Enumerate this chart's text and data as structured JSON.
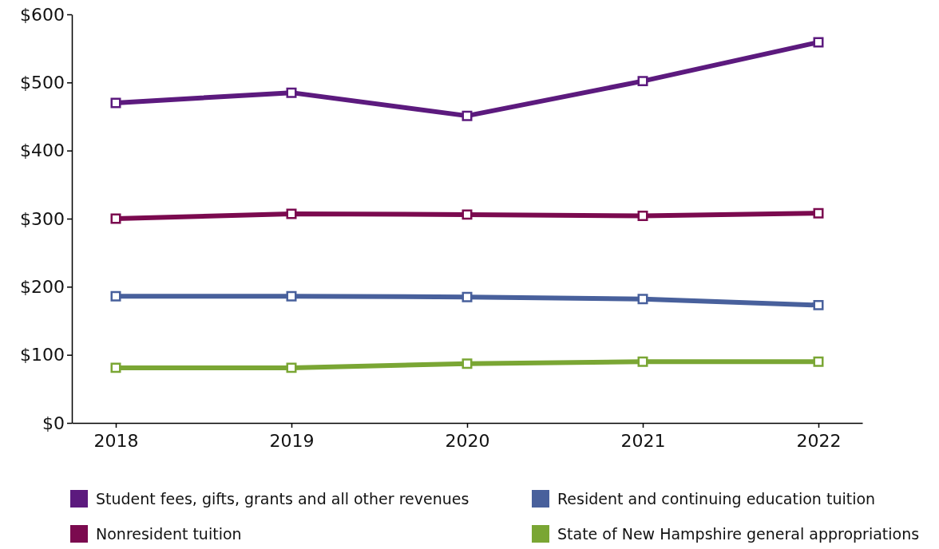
{
  "chart_data": {
    "type": "line",
    "categories": [
      "2018",
      "2019",
      "2020",
      "2021",
      "2022"
    ],
    "ylim": [
      0,
      600
    ],
    "yticks": [
      {
        "value": 0,
        "label": "$0"
      },
      {
        "value": 100,
        "label": "$100"
      },
      {
        "value": 200,
        "label": "$200"
      },
      {
        "value": 300,
        "label": "$300"
      },
      {
        "value": 400,
        "label": "$400"
      },
      {
        "value": 500,
        "label": "$500"
      },
      {
        "value": 600,
        "label": "$600"
      }
    ],
    "marker": "square",
    "legend": "bottom",
    "grid": false,
    "series": [
      {
        "name": "Student fees, gifts, grants and all other revenues",
        "color": "#5c1a7e",
        "values": [
          470,
          485,
          451,
          502,
          559
        ]
      },
      {
        "name": "Nonresident tuition",
        "color": "#7b0a4f",
        "values": [
          300,
          307,
          306,
          304,
          308
        ]
      },
      {
        "name": "Resident and continuing education tuition",
        "color": "#48609c",
        "values": [
          186,
          186,
          185,
          182,
          173
        ]
      },
      {
        "name": "State of New Hampshire general appropriations",
        "color": "#7aa634",
        "values": [
          81,
          81,
          87,
          90,
          90
        ]
      }
    ]
  }
}
